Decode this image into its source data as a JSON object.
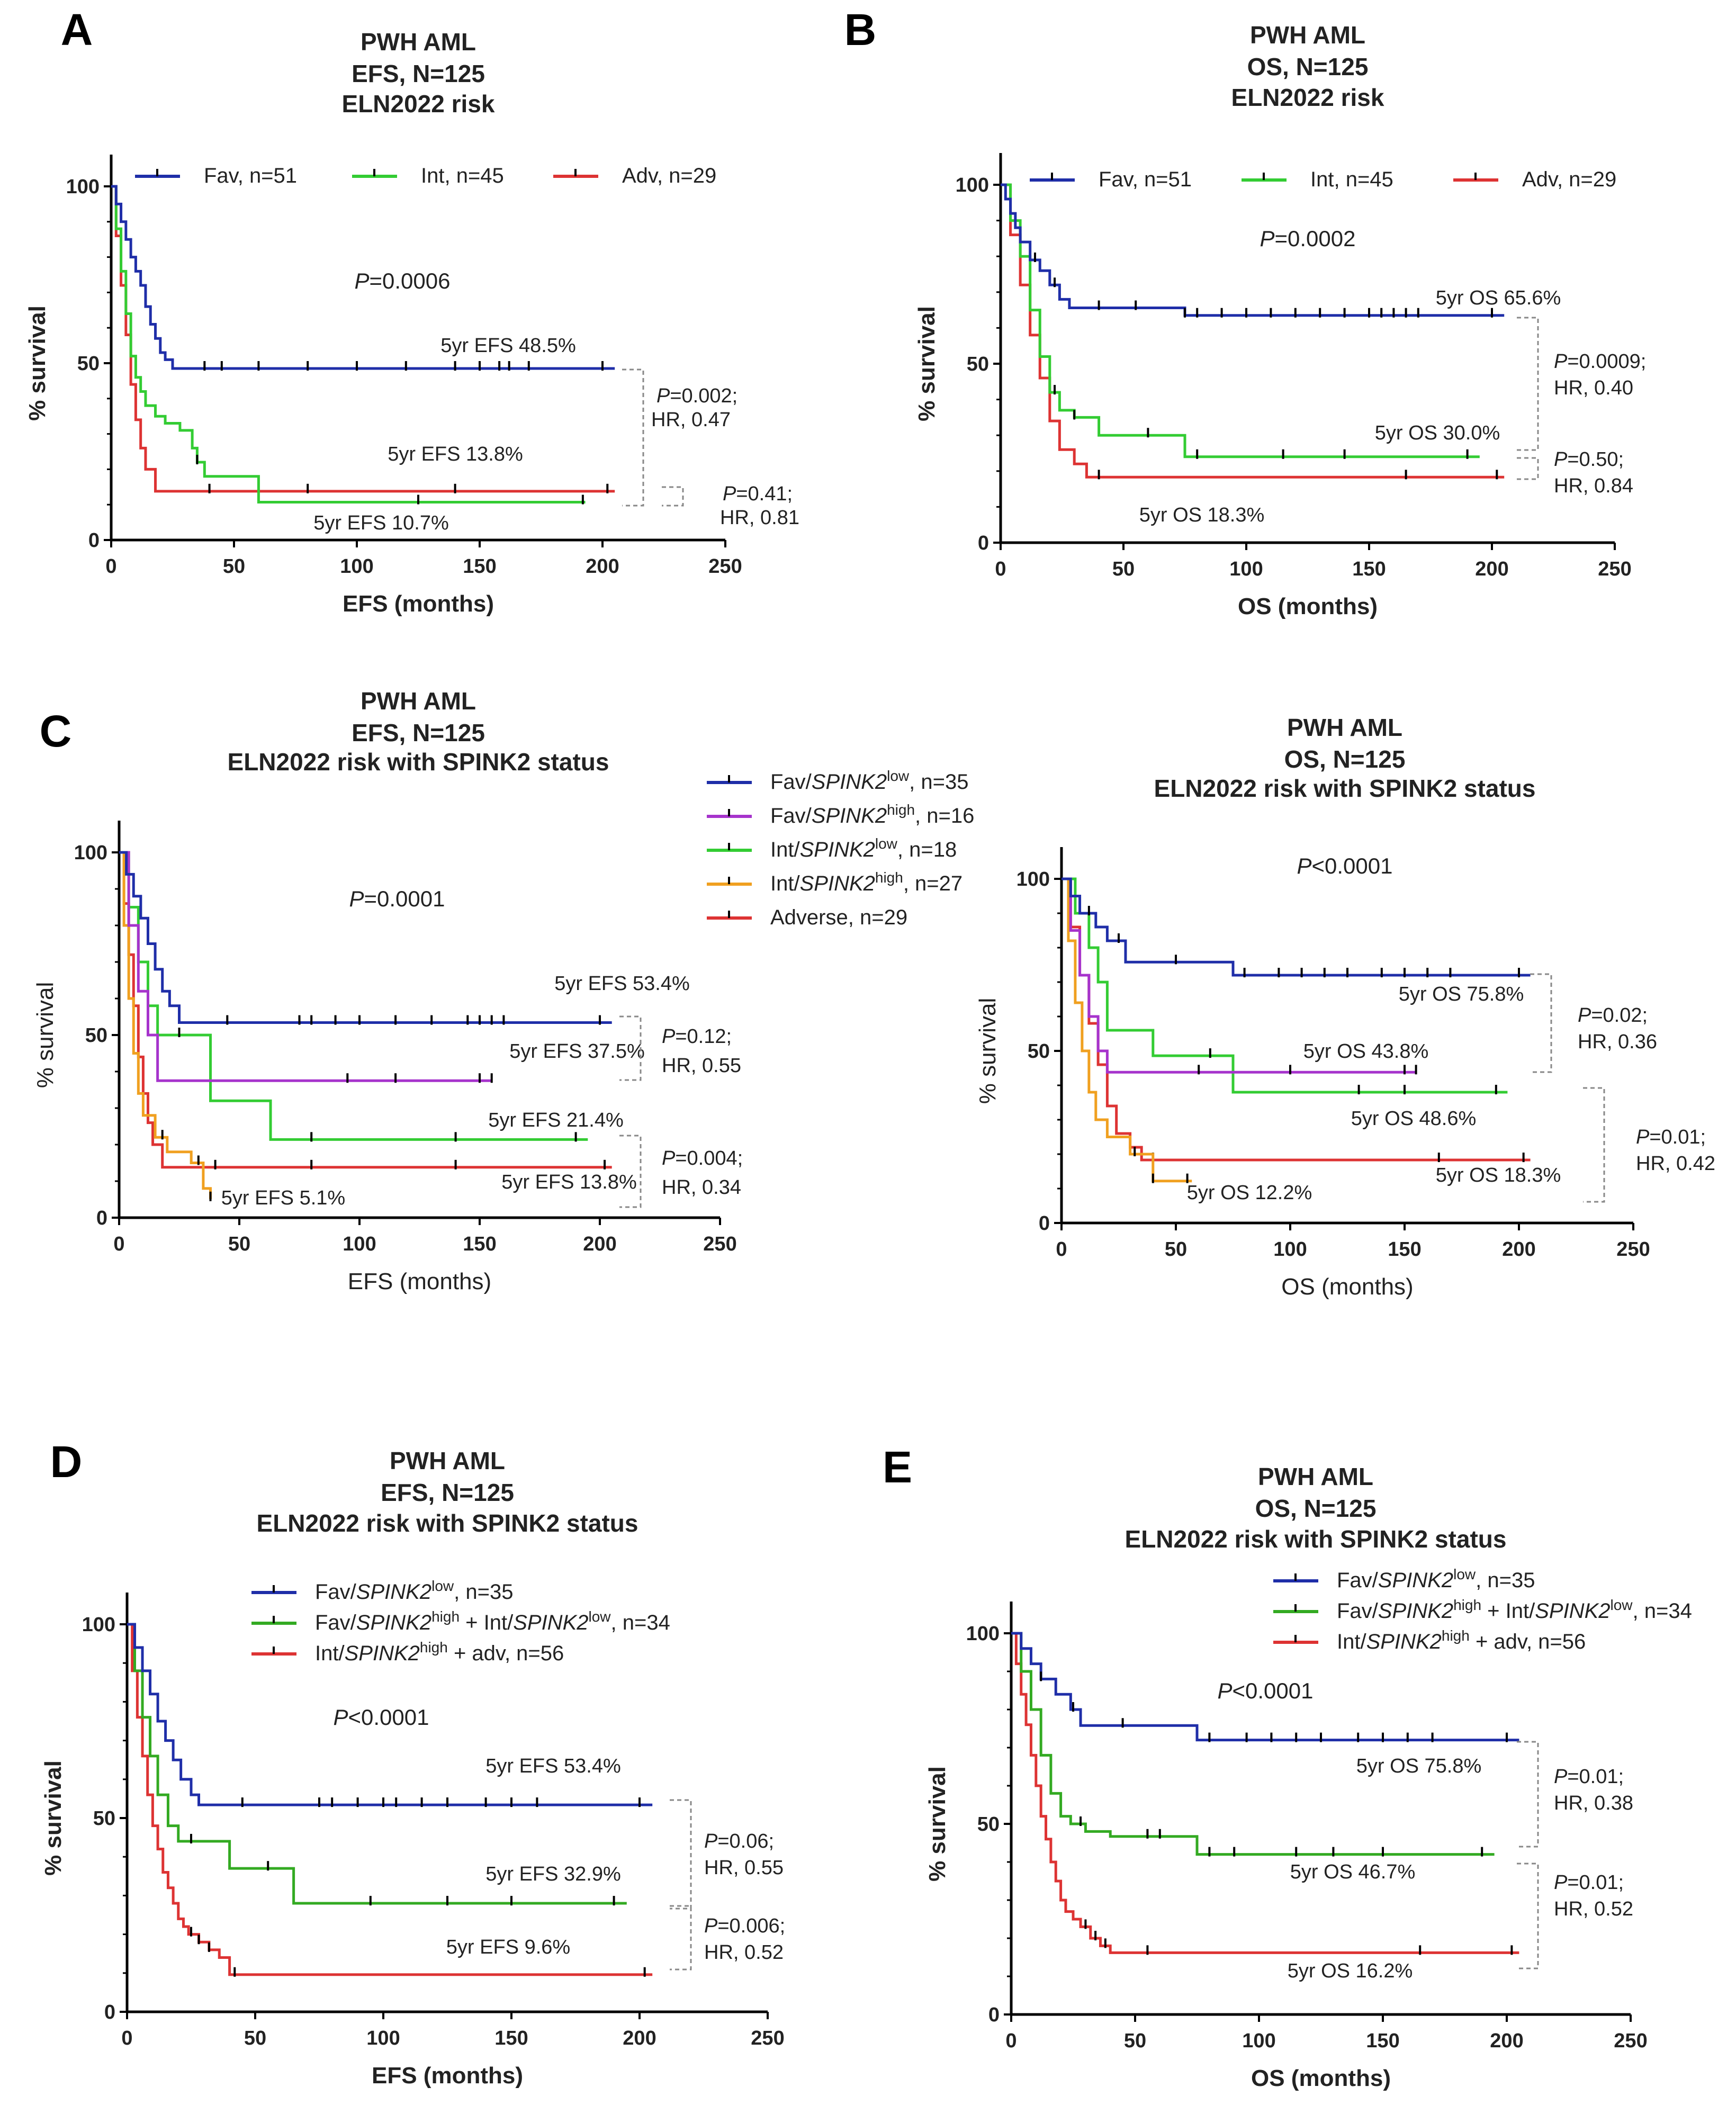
{
  "chart_data": [
    {
      "id": "A",
      "type": "line",
      "panel_label": "A",
      "title": [
        "PWH AML",
        "EFS, N=125",
        "ELN2022 risk"
      ],
      "xlabel": "EFS (months)",
      "ylabel": "% survival",
      "xlim": [
        0,
        250
      ],
      "ylim": [
        0,
        100
      ],
      "xticks": [
        "0",
        "50",
        "100",
        "150",
        "200",
        "250"
      ],
      "yticks": [
        "0",
        "50",
        "100"
      ],
      "pvalue": "P=0.0006",
      "series": [
        {
          "name": "Fav, n=51",
          "color": "#1f2ea8",
          "x": [
            0,
            2,
            4,
            6,
            8,
            10,
            12,
            14,
            16,
            18,
            20,
            22,
            25,
            205
          ],
          "y": [
            100,
            95,
            90,
            85,
            80,
            76,
            72,
            66,
            61,
            57,
            53,
            51,
            48.5,
            48.5
          ],
          "censor_x": [
            38,
            45,
            60,
            80,
            100,
            120,
            140,
            150,
            158,
            162,
            170,
            200
          ]
        },
        {
          "name": "Int, n=45",
          "color": "#33cc33",
          "x": [
            0,
            2,
            4,
            6,
            8,
            10,
            12,
            14,
            18,
            22,
            28,
            33,
            35,
            38,
            45,
            60,
            100,
            193
          ],
          "y": [
            100,
            88,
            76,
            64,
            52,
            46,
            42,
            38,
            35,
            33,
            31,
            26,
            22,
            18,
            18,
            10.7,
            10.7,
            10.7
          ],
          "censor_x": [
            35,
            125,
            192
          ]
        },
        {
          "name": "Adv, n=29",
          "color": "#dd3333",
          "x": [
            0,
            2,
            4,
            6,
            8,
            10,
            12,
            14,
            18,
            205
          ],
          "y": [
            100,
            86,
            72,
            58,
            44,
            34,
            26,
            20,
            13.8,
            13.8
          ],
          "censor_x": [
            40,
            80,
            140,
            202
          ]
        }
      ],
      "annotations": [
        "5yr EFS 48.5%",
        "5yr EFS 13.8%",
        "5yr EFS 10.7%"
      ],
      "comparisons": [
        {
          "p": "P=0.002;",
          "hr": "HR, 0.47"
        },
        {
          "p": "P=0.41;",
          "hr": "HR, 0.81"
        }
      ]
    },
    {
      "id": "B",
      "type": "line",
      "panel_label": "B",
      "title": [
        "PWH AML",
        "OS, N=125",
        "ELN2022 risk"
      ],
      "xlabel": "OS (months)",
      "ylabel": "% survival",
      "xlim": [
        0,
        250
      ],
      "ylim": [
        0,
        100
      ],
      "xticks": [
        "0",
        "50",
        "100",
        "150",
        "200",
        "250"
      ],
      "yticks": [
        "0",
        "50",
        "100"
      ],
      "pvalue": "P=0.0002",
      "series": [
        {
          "name": "Fav, n=51",
          "color": "#1f2ea8",
          "x": [
            0,
            2,
            4,
            6,
            8,
            12,
            16,
            20,
            24,
            28,
            75,
            205
          ],
          "y": [
            100,
            96,
            92,
            88,
            84,
            79,
            76,
            72,
            68,
            65.6,
            63.5,
            63.5
          ],
          "censor_x": [
            14,
            22,
            40,
            55,
            75,
            80,
            90,
            100,
            110,
            120,
            130,
            140,
            150,
            155,
            160,
            165,
            170,
            200
          ]
        },
        {
          "name": "Int, n=45",
          "color": "#33cc33",
          "x": [
            0,
            4,
            8,
            12,
            16,
            20,
            24,
            30,
            40,
            75,
            195
          ],
          "y": [
            100,
            90,
            80,
            65,
            52,
            42,
            37,
            35,
            30,
            24,
            24
          ],
          "censor_x": [
            22,
            30,
            60,
            80,
            115,
            140,
            190
          ]
        },
        {
          "name": "Adv, n=29",
          "color": "#dd3333",
          "x": [
            0,
            4,
            8,
            12,
            16,
            20,
            24,
            30,
            35,
            205
          ],
          "y": [
            100,
            86,
            72,
            58,
            46,
            34,
            26,
            22,
            18.3,
            18.3
          ],
          "censor_x": [
            40,
            165,
            202
          ]
        }
      ],
      "annotations": [
        "5yr OS 65.6%",
        "5yr OS 30.0%",
        "5yr OS 18.3%"
      ],
      "comparisons": [
        {
          "p": "P=0.0009;",
          "hr": "HR, 0.40"
        },
        {
          "p": "P=0.50;",
          "hr": "HR, 0.84"
        }
      ]
    },
    {
      "id": "C1",
      "type": "line",
      "panel_label": "C",
      "title": [
        "PWH AML",
        "EFS, N=125",
        "ELN2022 risk with SPINK2 status"
      ],
      "xlabel": "EFS (months)",
      "ylabel": "% survival",
      "xlim": [
        0,
        250
      ],
      "ylim": [
        0,
        100
      ],
      "xticks": [
        "0",
        "50",
        "100",
        "150",
        "200",
        "250"
      ],
      "yticks": [
        "0",
        "50",
        "100"
      ],
      "pvalue": "P=0.0001",
      "series": [
        {
          "name": "Fav/SPINK2low, n=35",
          "color": "#1f2ea8",
          "x": [
            0,
            3,
            6,
            9,
            12,
            15,
            18,
            21,
            25,
            205
          ],
          "y": [
            100,
            94,
            88,
            82,
            75,
            68,
            62,
            58,
            53.4,
            53.4
          ],
          "censor_x": [
            45,
            75,
            80,
            90,
            100,
            115,
            130,
            145,
            150,
            155,
            160,
            200
          ]
        },
        {
          "name": "Fav/SPINK2high, n=16",
          "color": "#a633cc",
          "x": [
            0,
            4,
            8,
            12,
            16,
            155
          ],
          "y": [
            100,
            80,
            62,
            50,
            37.5,
            37.5
          ],
          "censor_x": [
            95,
            115,
            150,
            155
          ]
        },
        {
          "name": "Int/SPINK2low, n=18",
          "color": "#33cc33",
          "x": [
            0,
            4,
            8,
            12,
            16,
            35,
            38,
            60,
            63,
            195
          ],
          "y": [
            100,
            85,
            70,
            58,
            50,
            50,
            32,
            32,
            21.4,
            21.4
          ],
          "censor_x": [
            25,
            80,
            140,
            190
          ]
        },
        {
          "name": "Int/SPINK2high, n=27",
          "color": "#f0a020",
          "x": [
            0,
            2,
            4,
            6,
            8,
            10,
            15,
            20,
            30,
            35,
            38
          ],
          "y": [
            100,
            80,
            60,
            45,
            34,
            28,
            22,
            18,
            15,
            8,
            5.1
          ],
          "censor_x": [
            18,
            33,
            38
          ]
        },
        {
          "name": "Adverse, n=29",
          "color": "#dd3333",
          "x": [
            0,
            2,
            4,
            6,
            8,
            10,
            12,
            14,
            18,
            205
          ],
          "y": [
            100,
            86,
            72,
            58,
            44,
            34,
            26,
            20,
            13.8,
            13.8
          ],
          "censor_x": [
            40,
            80,
            140,
            202
          ]
        }
      ],
      "annotations": [
        "5yr EFS 53.4%",
        "5yr EFS 37.5%",
        "5yr EFS 21.4%",
        "5yr EFS 13.8%",
        "5yr EFS 5.1%"
      ],
      "comparisons": [
        {
          "p": "P=0.12;",
          "hr": "HR, 0.55"
        },
        {
          "p": "P=0.004;",
          "hr": "HR, 0.34"
        }
      ]
    },
    {
      "id": "C2",
      "type": "line",
      "panel_label": "",
      "title": [
        "PWH AML",
        "OS, N=125",
        "ELN2022 risk with SPINK2 status"
      ],
      "xlabel": "OS (months)",
      "ylabel": "% survival",
      "xlim": [
        0,
        250
      ],
      "ylim": [
        0,
        100
      ],
      "xticks": [
        "0",
        "50",
        "100",
        "150",
        "200",
        "250"
      ],
      "yticks": [
        "0",
        "50",
        "100"
      ],
      "pvalue": "P<0.0001",
      "series": [
        {
          "name": "Fav/SPINK2low, n=35",
          "color": "#1f2ea8",
          "x": [
            0,
            4,
            8,
            15,
            20,
            28,
            75,
            205
          ],
          "y": [
            100,
            95,
            90,
            86,
            82,
            75.8,
            72,
            72
          ],
          "censor_x": [
            12,
            25,
            50,
            80,
            95,
            105,
            115,
            125,
            140,
            150,
            160,
            170,
            200
          ]
        },
        {
          "name": "Fav/SPINK2high, n=16",
          "color": "#a633cc",
          "x": [
            0,
            4,
            8,
            12,
            16,
            20,
            155
          ],
          "y": [
            100,
            85,
            72,
            60,
            50,
            43.8,
            43.8
          ],
          "censor_x": [
            60,
            100,
            150,
            155
          ]
        },
        {
          "name": "Int/SPINK2low, n=18",
          "color": "#33cc33",
          "x": [
            0,
            6,
            12,
            16,
            20,
            30,
            40,
            75,
            195
          ],
          "y": [
            100,
            90,
            80,
            70,
            56,
            56,
            48.6,
            38,
            38
          ],
          "censor_x": [
            65,
            130,
            150,
            190
          ]
        },
        {
          "name": "Int/SPINK2high, n=27",
          "color": "#f0a020",
          "x": [
            0,
            3,
            6,
            9,
            12,
            15,
            20,
            30,
            40,
            57
          ],
          "y": [
            100,
            82,
            64,
            50,
            38,
            30,
            25,
            20,
            12.2,
            12.2
          ],
          "censor_x": [
            32,
            40,
            55
          ]
        },
        {
          "name": "Adverse, n=29",
          "color": "#dd3333",
          "x": [
            0,
            4,
            8,
            12,
            16,
            20,
            24,
            30,
            35,
            205
          ],
          "y": [
            100,
            86,
            72,
            58,
            46,
            34,
            26,
            22,
            18.3,
            18.3
          ],
          "censor_x": [
            40,
            165,
            202
          ]
        }
      ],
      "annotations": [
        "5yr OS 75.8%",
        "5yr OS 43.8%",
        "5yr OS 48.6%",
        "5yr OS 18.3%",
        "5yr OS 12.2%"
      ],
      "comparisons": [
        {
          "p": "P=0.02;",
          "hr": "HR, 0.36"
        },
        {
          "p": "P=0.01;",
          "hr": "HR, 0.42"
        }
      ]
    },
    {
      "id": "D",
      "type": "line",
      "panel_label": "D",
      "title": [
        "PWH AML",
        "EFS, N=125",
        "ELN2022 risk with SPINK2 status"
      ],
      "xlabel": "EFS (months)",
      "ylabel": "% survival",
      "xlim": [
        0,
        250
      ],
      "ylim": [
        0,
        100
      ],
      "xticks": [
        "0",
        "50",
        "100",
        "150",
        "200",
        "250"
      ],
      "yticks": [
        "0",
        "50",
        "100"
      ],
      "pvalue": "P<0.0001",
      "series": [
        {
          "name": "Fav/SPINK2low, n=35",
          "color": "#1f2ea8",
          "x": [
            0,
            3,
            6,
            9,
            12,
            15,
            18,
            21,
            25,
            28,
            205
          ],
          "y": [
            100,
            94,
            88,
            82,
            75,
            70,
            65,
            60,
            56,
            53.4,
            53.4
          ],
          "censor_x": [
            45,
            75,
            80,
            90,
            100,
            105,
            115,
            125,
            140,
            150,
            160,
            200
          ]
        },
        {
          "name": "Fav/SPINK2high + Int/SPINK2low, n=34",
          "color": "#33aa22",
          "x": [
            0,
            3,
            6,
            9,
            12,
            16,
            20,
            35,
            40,
            60,
            65,
            195
          ],
          "y": [
            100,
            88,
            76,
            66,
            56,
            48,
            44,
            44,
            37,
            37,
            28,
            28
          ],
          "censor_x": [
            25,
            55,
            95,
            125,
            150,
            190
          ]
        },
        {
          "name": "Int/SPINK2high + adv, n=56",
          "color": "#dd3333",
          "x": [
            0,
            2,
            4,
            6,
            8,
            10,
            12,
            14,
            16,
            18,
            20,
            22,
            24,
            28,
            32,
            36,
            40,
            205
          ],
          "y": [
            100,
            88,
            76,
            66,
            56,
            48,
            42,
            36,
            32,
            28,
            24,
            22,
            20,
            18,
            16,
            14,
            9.6,
            9.6
          ],
          "censor_x": [
            25,
            28,
            32,
            42,
            202
          ]
        }
      ],
      "annotations": [
        "5yr EFS 53.4%",
        "5yr EFS 32.9%",
        "5yr EFS 9.6%"
      ],
      "comparisons": [
        {
          "p": "P=0.06;",
          "hr": "HR, 0.55"
        },
        {
          "p": "P=0.006;",
          "hr": "HR, 0.52"
        }
      ]
    },
    {
      "id": "E",
      "type": "line",
      "panel_label": "E",
      "title": [
        "PWH AML",
        "OS, N=125",
        "ELN2022 risk with SPINK2 status"
      ],
      "xlabel": "OS (months)",
      "ylabel": "% survival",
      "xlim": [
        0,
        250
      ],
      "ylim": [
        0,
        100
      ],
      "xticks": [
        "0",
        "50",
        "100",
        "150",
        "200",
        "250"
      ],
      "yticks": [
        "0",
        "50",
        "100"
      ],
      "pvalue": "P<0.0001",
      "series": [
        {
          "name": "Fav/SPINK2low, n=35",
          "color": "#1f2ea8",
          "x": [
            0,
            4,
            8,
            12,
            18,
            24,
            28,
            75,
            205
          ],
          "y": [
            100,
            96,
            92,
            88,
            84,
            80,
            75.8,
            72,
            72
          ],
          "censor_x": [
            12,
            25,
            45,
            80,
            95,
            105,
            115,
            125,
            140,
            150,
            160,
            170,
            200
          ]
        },
        {
          "name": "Fav/SPINK2high + Int/SPINK2low, n=34",
          "color": "#33aa22",
          "x": [
            0,
            4,
            8,
            12,
            16,
            20,
            24,
            30,
            40,
            75,
            195
          ],
          "y": [
            100,
            90,
            80,
            68,
            58,
            52,
            50,
            48,
            46.7,
            42,
            42
          ],
          "censor_x": [
            28,
            55,
            60,
            80,
            90,
            115,
            130,
            150,
            190
          ]
        },
        {
          "name": "Int/SPINK2high + adv, n=56",
          "color": "#dd3333",
          "x": [
            0,
            2,
            4,
            6,
            8,
            10,
            12,
            14,
            16,
            18,
            20,
            22,
            25,
            28,
            32,
            36,
            40,
            205
          ],
          "y": [
            100,
            92,
            84,
            76,
            68,
            60,
            52,
            46,
            40,
            35,
            30,
            27,
            25,
            23,
            20,
            18,
            16.2,
            16.2
          ],
          "censor_x": [
            30,
            34,
            38,
            55,
            165,
            202
          ]
        }
      ],
      "annotations": [
        "5yr OS 75.8%",
        "5yr OS 46.7%",
        "5yr OS 16.2%"
      ],
      "comparisons": [
        {
          "p": "P=0.01;",
          "hr": "HR, 0.38"
        },
        {
          "p": "P=0.01;",
          "hr": "HR, 0.52"
        }
      ]
    }
  ]
}
